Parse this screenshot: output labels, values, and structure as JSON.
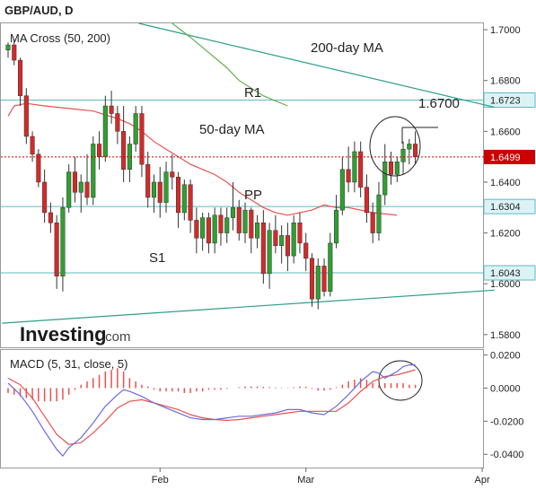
{
  "title": "GBP/AUD, D",
  "colors": {
    "up": "#2fa02f",
    "down": "#d42a2a",
    "ma50": "#e8514f",
    "ma200": "#5fb04c",
    "hline": "#5fb8c2",
    "trend": "#2e9e8a",
    "price_line": "#cc0000",
    "price_label_bg": "#cc0000",
    "level_label_bg": "#dcf3f6",
    "macd": "#6b6bdc",
    "signal": "#e8514f",
    "hist": "#e8514f"
  },
  "chart_data": [
    {
      "type": "candlestick",
      "indicator_label": "MA Cross (50, 200)",
      "ylim": [
        1.575,
        1.7025
      ],
      "yticks": [
        "1.7000",
        "1.6800",
        "1.6600",
        "1.6400",
        "1.6200",
        "1.6000",
        "1.5800"
      ],
      "xticks": [
        {
          "label": "Feb",
          "index": 25
        },
        {
          "label": "Mar",
          "index": 49
        },
        {
          "label": "Apr",
          "index": 78
        }
      ],
      "candles": [
        [
          1.692,
          1.695,
          1.689,
          1.694
        ],
        [
          1.694,
          1.696,
          1.686,
          1.688
        ],
        [
          1.688,
          1.689,
          1.67,
          1.674
        ],
        [
          1.674,
          1.677,
          1.655,
          1.658
        ],
        [
          1.658,
          1.66,
          1.648,
          1.651
        ],
        [
          1.651,
          1.653,
          1.638,
          1.64
        ],
        [
          1.64,
          1.645,
          1.624,
          1.628
        ],
        [
          1.628,
          1.632,
          1.62,
          1.624
        ],
        [
          1.624,
          1.627,
          1.598,
          1.603
        ],
        [
          1.603,
          1.634,
          1.597,
          1.63
        ],
        [
          1.63,
          1.647,
          1.628,
          1.644
        ],
        [
          1.644,
          1.65,
          1.632,
          1.636
        ],
        [
          1.636,
          1.643,
          1.628,
          1.64
        ],
        [
          1.64,
          1.651,
          1.631,
          1.634
        ],
        [
          1.634,
          1.658,
          1.631,
          1.655
        ],
        [
          1.655,
          1.66,
          1.645,
          1.65
        ],
        [
          1.65,
          1.674,
          1.648,
          1.67
        ],
        [
          1.67,
          1.676,
          1.663,
          1.667
        ],
        [
          1.667,
          1.67,
          1.655,
          1.66
        ],
        [
          1.66,
          1.67,
          1.64,
          1.645
        ],
        [
          1.645,
          1.658,
          1.64,
          1.655
        ],
        [
          1.655,
          1.67,
          1.652,
          1.667
        ],
        [
          1.667,
          1.67,
          1.642,
          1.647
        ],
        [
          1.647,
          1.652,
          1.63,
          1.634
        ],
        [
          1.634,
          1.643,
          1.628,
          1.64
        ],
        [
          1.64,
          1.646,
          1.626,
          1.632
        ],
        [
          1.632,
          1.648,
          1.628,
          1.644
        ],
        [
          1.644,
          1.651,
          1.637,
          1.642
        ],
        [
          1.642,
          1.644,
          1.622,
          1.628
        ],
        [
          1.628,
          1.641,
          1.625,
          1.639
        ],
        [
          1.639,
          1.641,
          1.62,
          1.625
        ],
        [
          1.625,
          1.63,
          1.612,
          1.618
        ],
        [
          1.618,
          1.628,
          1.613,
          1.626
        ],
        [
          1.626,
          1.628,
          1.612,
          1.616
        ],
        [
          1.616,
          1.63,
          1.612,
          1.627
        ],
        [
          1.627,
          1.63,
          1.615,
          1.62
        ],
        [
          1.62,
          1.63,
          1.616,
          1.626
        ],
        [
          1.626,
          1.64,
          1.621,
          1.63
        ],
        [
          1.63,
          1.633,
          1.617,
          1.62
        ],
        [
          1.62,
          1.632,
          1.616,
          1.629
        ],
        [
          1.629,
          1.63,
          1.612,
          1.618
        ],
        [
          1.618,
          1.627,
          1.614,
          1.624
        ],
        [
          1.624,
          1.629,
          1.6,
          1.604
        ],
        [
          1.604,
          1.624,
          1.598,
          1.621
        ],
        [
          1.621,
          1.627,
          1.612,
          1.615
        ],
        [
          1.615,
          1.623,
          1.608,
          1.619
        ],
        [
          1.619,
          1.624,
          1.605,
          1.611
        ],
        [
          1.611,
          1.627,
          1.608,
          1.624
        ],
        [
          1.624,
          1.628,
          1.612,
          1.616
        ],
        [
          1.616,
          1.62,
          1.605,
          1.61
        ],
        [
          1.61,
          1.612,
          1.591,
          1.594
        ],
        [
          1.594,
          1.61,
          1.59,
          1.607
        ],
        [
          1.607,
          1.61,
          1.595,
          1.597
        ],
        [
          1.597,
          1.62,
          1.595,
          1.616
        ],
        [
          1.616,
          1.635,
          1.614,
          1.629
        ],
        [
          1.629,
          1.65,
          1.627,
          1.645
        ],
        [
          1.645,
          1.654,
          1.636,
          1.64
        ],
        [
          1.64,
          1.656,
          1.636,
          1.652
        ],
        [
          1.652,
          1.656,
          1.634,
          1.638
        ],
        [
          1.638,
          1.643,
          1.624,
          1.628
        ],
        [
          1.628,
          1.632,
          1.616,
          1.62
        ],
        [
          1.62,
          1.64,
          1.617,
          1.635
        ],
        [
          1.635,
          1.655,
          1.631,
          1.648
        ],
        [
          1.648,
          1.652,
          1.639,
          1.643
        ],
        [
          1.643,
          1.65,
          1.64,
          1.648
        ],
        [
          1.648,
          1.656,
          1.643,
          1.653
        ],
        [
          1.653,
          1.657,
          1.647,
          1.655
        ],
        [
          1.655,
          1.66,
          1.647,
          1.65
        ]
      ],
      "ma50": [
        [
          0,
          1.666
        ],
        [
          1,
          1.67
        ],
        [
          3,
          1.671
        ],
        [
          6,
          1.67
        ],
        [
          10,
          1.669
        ],
        [
          14,
          1.668
        ],
        [
          18,
          1.665
        ],
        [
          20,
          1.663
        ],
        [
          22,
          1.66
        ],
        [
          24,
          1.656
        ],
        [
          26,
          1.653
        ],
        [
          28,
          1.65
        ],
        [
          30,
          1.647
        ],
        [
          32,
          1.645
        ],
        [
          34,
          1.643
        ],
        [
          36,
          1.64
        ],
        [
          38,
          1.636
        ],
        [
          40,
          1.633
        ],
        [
          42,
          1.63
        ],
        [
          44,
          1.628
        ],
        [
          46,
          1.627
        ],
        [
          48,
          1.628
        ],
        [
          50,
          1.629
        ],
        [
          52,
          1.631
        ],
        [
          54,
          1.63
        ],
        [
          56,
          1.63
        ],
        [
          58,
          1.629
        ],
        [
          60,
          1.628
        ],
        [
          62,
          1.6275
        ],
        [
          64,
          1.627
        ]
      ],
      "ma200": [
        [
          27,
          1.7025
        ],
        [
          30,
          1.697
        ],
        [
          33,
          1.691
        ],
        [
          36,
          1.685
        ],
        [
          38,
          1.68
        ],
        [
          40,
          1.677
        ],
        [
          42,
          1.674
        ],
        [
          44,
          1.672
        ],
        [
          46,
          1.67
        ]
      ],
      "levels": [
        {
          "name": "R1",
          "value": 1.6723,
          "label": "1.6723"
        },
        {
          "name": "PP",
          "value": 1.6304,
          "label": "1.6304"
        },
        {
          "name": "S1",
          "value": 1.6043,
          "label": "1.6043"
        }
      ],
      "last_price": {
        "value": 1.6499,
        "label": "1.6499"
      },
      "trendlines": [
        {
          "from": [
            21.5,
            1.7025
          ],
          "to": [
            80,
            1.6695
          ]
        },
        {
          "from": [
            -1,
            1.5845
          ],
          "to": [
            80,
            1.5975
          ]
        }
      ],
      "annotations": [
        {
          "text": "200-day MA"
        },
        {
          "text": "50-day MA"
        },
        {
          "text": "R1"
        },
        {
          "text": "PP"
        },
        {
          "text": "S1"
        },
        {
          "text": "1.6700"
        }
      ],
      "watermark": {
        "brand": "Investing",
        "suffix": ".com"
      }
    },
    {
      "type": "macd",
      "label": "MACD (5, 31, close, 5)",
      "ylim": [
        -0.048,
        0.023
      ],
      "yticks": [
        "0.0200",
        "0.0000",
        "-0.0200",
        "-0.0400"
      ],
      "macd": [
        [
          0,
          0.003
        ],
        [
          2,
          -0.004
        ],
        [
          4,
          -0.014
        ],
        [
          6,
          -0.026
        ],
        [
          8,
          -0.037
        ],
        [
          9,
          -0.041
        ],
        [
          10,
          -0.036
        ],
        [
          12,
          -0.03
        ],
        [
          14,
          -0.021
        ],
        [
          16,
          -0.011
        ],
        [
          18,
          -0.004
        ],
        [
          19,
          -0.001
        ],
        [
          20,
          -0.002
        ],
        [
          22,
          -0.005
        ],
        [
          24,
          -0.009
        ],
        [
          26,
          -0.012
        ],
        [
          28,
          -0.015
        ],
        [
          30,
          -0.018
        ],
        [
          32,
          -0.019
        ],
        [
          34,
          -0.019
        ],
        [
          36,
          -0.018
        ],
        [
          38,
          -0.017
        ],
        [
          40,
          -0.017
        ],
        [
          42,
          -0.016
        ],
        [
          44,
          -0.015
        ],
        [
          46,
          -0.013
        ],
        [
          48,
          -0.013
        ],
        [
          50,
          -0.015
        ],
        [
          52,
          -0.016
        ],
        [
          54,
          -0.011
        ],
        [
          56,
          -0.004
        ],
        [
          58,
          0.004
        ],
        [
          60,
          0.01
        ],
        [
          61,
          0.009
        ],
        [
          62,
          0.006
        ],
        [
          63,
          0.008
        ],
        [
          64,
          0.01
        ],
        [
          65,
          0.013
        ],
        [
          66,
          0.014
        ],
        [
          67,
          0.014
        ]
      ],
      "signal": [
        [
          0,
          0.006
        ],
        [
          2,
          0.002
        ],
        [
          4,
          -0.006
        ],
        [
          6,
          -0.017
        ],
        [
          8,
          -0.028
        ],
        [
          10,
          -0.034
        ],
        [
          12,
          -0.033
        ],
        [
          14,
          -0.027
        ],
        [
          16,
          -0.02
        ],
        [
          18,
          -0.012
        ],
        [
          20,
          -0.008
        ],
        [
          22,
          -0.007
        ],
        [
          24,
          -0.009
        ],
        [
          26,
          -0.011
        ],
        [
          28,
          -0.013
        ],
        [
          30,
          -0.016
        ],
        [
          32,
          -0.018
        ],
        [
          34,
          -0.019
        ],
        [
          36,
          -0.0195
        ],
        [
          38,
          -0.019
        ],
        [
          40,
          -0.018
        ],
        [
          42,
          -0.017
        ],
        [
          44,
          -0.016
        ],
        [
          46,
          -0.015
        ],
        [
          48,
          -0.014
        ],
        [
          50,
          -0.014
        ],
        [
          52,
          -0.014
        ],
        [
          54,
          -0.014
        ],
        [
          56,
          -0.009
        ],
        [
          58,
          -0.002
        ],
        [
          60,
          0.004
        ],
        [
          62,
          0.007
        ],
        [
          64,
          0.008
        ],
        [
          66,
          0.01
        ],
        [
          67,
          0.011
        ]
      ],
      "hist": [
        -0.003,
        -0.004,
        -0.005,
        -0.006,
        -0.007,
        -0.008,
        -0.008,
        -0.008,
        -0.008,
        -0.007,
        -0.004,
        -0.001,
        0.002,
        0.004,
        0.006,
        0.008,
        0.01,
        0.011,
        0.012,
        0.01,
        0.006,
        0.004,
        0.002,
        0.001,
        -0.001,
        -0.002,
        -0.002,
        -0.002,
        -0.002,
        -0.003,
        -0.003,
        -0.002,
        -0.002,
        -0.001,
        -0.001,
        -0.001,
        -0.0005,
        0,
        0.0005,
        0.001,
        0.001,
        0.001,
        0.0008,
        0.0006,
        0.0004,
        0.0003,
        0.0002,
        0.0005,
        0.001,
        0.0008,
        -0.0005,
        -0.0015,
        -0.0015,
        -0.001,
        0.0005,
        0.002,
        0.004,
        0.005,
        0.006,
        0.005,
        0.003,
        0.002,
        0.003,
        0.003,
        0.003,
        0.003,
        0.002,
        0.002
      ]
    }
  ]
}
